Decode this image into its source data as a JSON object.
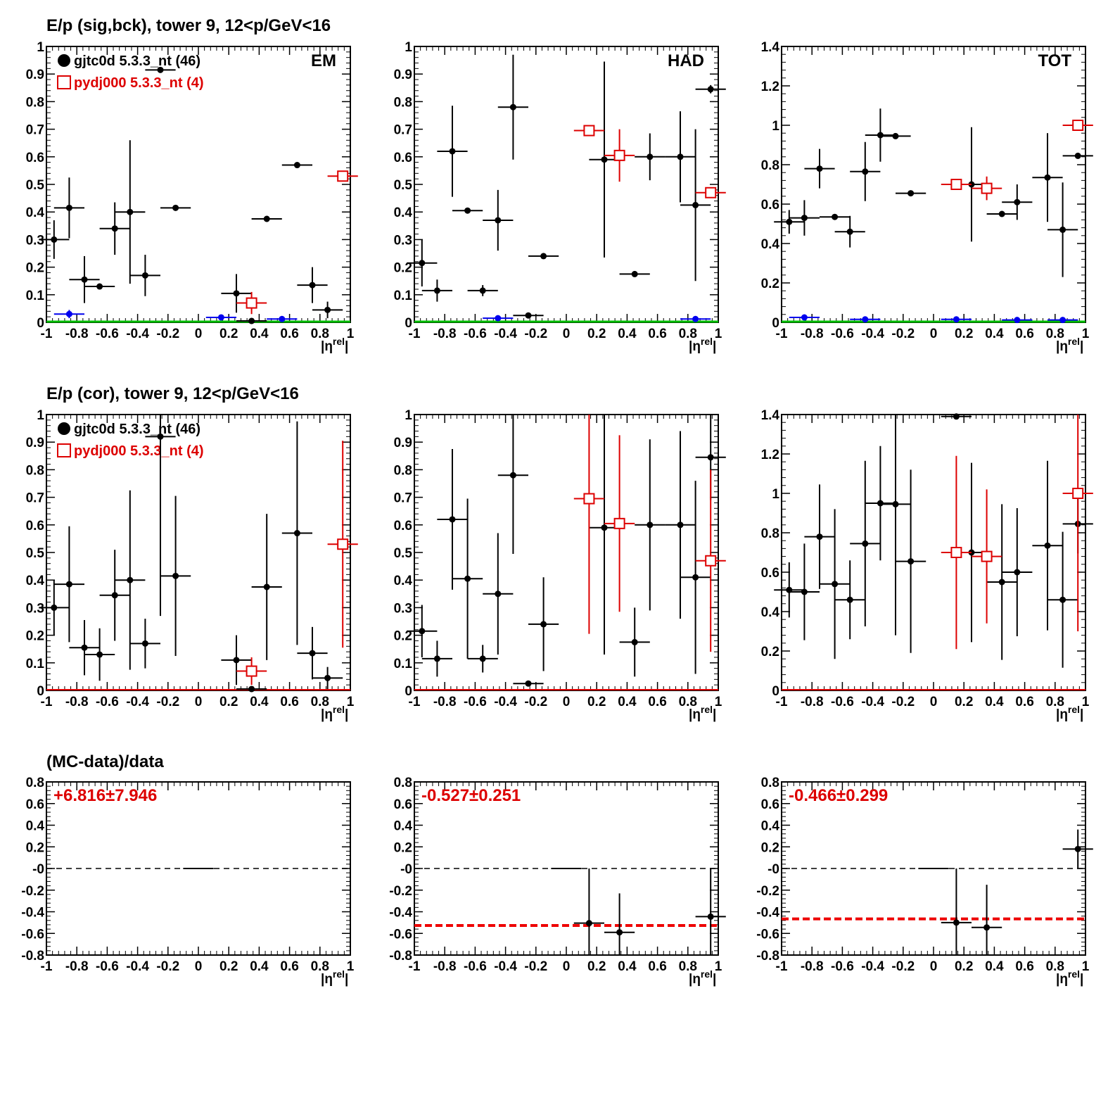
{
  "row_titles": [
    "E/p (sig,bck), tower 9, 12<p/GeV<16",
    "E/p (cor), tower 9, 12<p/GeV<16",
    "(MC-data)/data"
  ],
  "legend": {
    "data_label": "gjtc0d 5.3.3_nt (46)",
    "mc_label": "pydj000 5.3.3_nt (4)"
  },
  "colors": {
    "data": "#000000",
    "mc": "#dd0000",
    "bck": "#0000ee",
    "zero_line_top": "#00bb00",
    "zero_line_mid": "#dd0000",
    "fit_line": "#ee0000"
  },
  "chart_data": [
    {
      "id": "sigbck-em",
      "type": "scatter",
      "tag": "EM",
      "legend": true,
      "xlim": [
        -1,
        1
      ],
      "ylim": [
        0,
        1
      ],
      "xlabel": "|η^rel|",
      "xticks": [
        "-1",
        "-0.8",
        "-0.6",
        "-0.4",
        "-0.2",
        "0",
        "0.2",
        "0.4",
        "0.6",
        "0.8",
        "1"
      ],
      "yticks": [
        "0",
        "0.1",
        "0.2",
        "0.3",
        "0.4",
        "0.5",
        "0.6",
        "0.7",
        "0.8",
        "0.9",
        "1"
      ],
      "zero_line": "green",
      "series": [
        {
          "name": "gjtc0d 5.3.3_nt (46)",
          "role": "data",
          "points": [
            [
              -0.95,
              0.3,
              0.07
            ],
            [
              -0.85,
              0.415,
              0.11
            ],
            [
              -0.75,
              0.155,
              0.085
            ],
            [
              -0.65,
              0.13,
              0.005
            ],
            [
              -0.55,
              0.34,
              0.095
            ],
            [
              -0.45,
              0.4,
              0.26
            ],
            [
              -0.35,
              0.17,
              0.075
            ],
            [
              -0.25,
              0.915,
              0.005
            ],
            [
              -0.15,
              0.415,
              0.005
            ],
            [
              0.25,
              0.105,
              0.07
            ],
            [
              0.35,
              0.005,
              0.005
            ],
            [
              0.45,
              0.375,
              0.005
            ],
            [
              0.65,
              0.57,
              0.005
            ],
            [
              0.75,
              0.135,
              0.065
            ],
            [
              0.85,
              0.045,
              0.03
            ]
          ]
        },
        {
          "name": "pydj000 5.3.3_nt (4)",
          "role": "mc",
          "points": [
            [
              0.35,
              0.07,
              0.04
            ],
            [
              0.95,
              0.53,
              0.005
            ]
          ]
        },
        {
          "name": "",
          "role": "bck",
          "points": [
            [
              -0.85,
              0.03,
              0.015
            ],
            [
              0.15,
              0.018,
              0.005
            ],
            [
              0.55,
              0.012,
              0.005
            ]
          ]
        }
      ]
    },
    {
      "id": "sigbck-had",
      "type": "scatter",
      "tag": "HAD",
      "legend": false,
      "xlim": [
        -1,
        1
      ],
      "ylim": [
        0,
        1
      ],
      "xlabel": "|η^rel|",
      "xticks": [
        "-1",
        "-0.8",
        "-0.6",
        "-0.4",
        "-0.2",
        "0",
        "0.2",
        "0.4",
        "0.6",
        "0.8",
        "1"
      ],
      "yticks": [
        "0",
        "0.1",
        "0.2",
        "0.3",
        "0.4",
        "0.5",
        "0.6",
        "0.7",
        "0.8",
        "0.9",
        "1"
      ],
      "zero_line": "green",
      "series": [
        {
          "name": "gjtc0d 5.3.3_nt (46)",
          "role": "data",
          "points": [
            [
              -0.95,
              0.215,
              0.085
            ],
            [
              -0.85,
              0.115,
              0.04
            ],
            [
              -0.75,
              0.62,
              0.165
            ],
            [
              -0.65,
              0.405,
              0.005
            ],
            [
              -0.55,
              0.115,
              0.02
            ],
            [
              -0.45,
              0.37,
              0.11
            ],
            [
              -0.35,
              0.78,
              0.19
            ],
            [
              -0.25,
              0.025,
              0.005
            ],
            [
              -0.15,
              0.24,
              0.005
            ],
            [
              0.25,
              0.59,
              0.355
            ],
            [
              0.45,
              0.175,
              0.005
            ],
            [
              0.55,
              0.6,
              0.085
            ],
            [
              0.75,
              0.6,
              0.165
            ],
            [
              0.85,
              0.425,
              0.275
            ],
            [
              0.95,
              0.845,
              0.015
            ]
          ]
        },
        {
          "name": "pydj000 5.3.3_nt (4)",
          "role": "mc",
          "points": [
            [
              0.15,
              0.695,
              0.005
            ],
            [
              0.35,
              0.605,
              0.095
            ],
            [
              0.95,
              0.47,
              0.005
            ]
          ]
        },
        {
          "name": "",
          "role": "bck",
          "points": [
            [
              -0.45,
              0.015,
              0.005
            ],
            [
              0.85,
              0.012,
              0.005
            ]
          ]
        }
      ]
    },
    {
      "id": "sigbck-tot",
      "type": "scatter",
      "tag": "TOT",
      "legend": false,
      "xlim": [
        -1,
        1
      ],
      "ylim": [
        0,
        1.4
      ],
      "xlabel": "|η^rel|",
      "xticks": [
        "-1",
        "-0.8",
        "-0.6",
        "-0.4",
        "-0.2",
        "0",
        "0.2",
        "0.4",
        "0.6",
        "0.8",
        "1"
      ],
      "yticks": [
        "0",
        "0.2",
        "0.4",
        "0.6",
        "0.8",
        "1",
        "1.2",
        "1.4"
      ],
      "zero_line": "green",
      "series": [
        {
          "name": "gjtc0d 5.3.3_nt (46)",
          "role": "data",
          "points": [
            [
              -0.95,
              0.51,
              0.06
            ],
            [
              -0.85,
              0.53,
              0.09
            ],
            [
              -0.75,
              0.78,
              0.1
            ],
            [
              -0.65,
              0.535,
              0.005
            ],
            [
              -0.55,
              0.46,
              0.08
            ],
            [
              -0.45,
              0.765,
              0.15
            ],
            [
              -0.35,
              0.95,
              0.135
            ],
            [
              -0.25,
              0.945,
              0.005
            ],
            [
              -0.15,
              0.655,
              0.005
            ],
            [
              0.25,
              0.7,
              0.29
            ],
            [
              0.45,
              0.55,
              0.005
            ],
            [
              0.55,
              0.61,
              0.09
            ],
            [
              0.75,
              0.735,
              0.225
            ],
            [
              0.85,
              0.47,
              0.24
            ],
            [
              0.95,
              0.845,
              0.015
            ]
          ]
        },
        {
          "name": "pydj000 5.3.3_nt (4)",
          "role": "mc",
          "points": [
            [
              0.15,
              0.7,
              0.005
            ],
            [
              0.35,
              0.68,
              0.06
            ],
            [
              0.95,
              1.0,
              0.005
            ]
          ]
        },
        {
          "name": "",
          "role": "bck",
          "points": [
            [
              -0.85,
              0.025,
              0.015
            ],
            [
              -0.45,
              0.015,
              0.005
            ],
            [
              0.15,
              0.015,
              0.005
            ],
            [
              0.55,
              0.012,
              0.005
            ],
            [
              0.85,
              0.012,
              0.005
            ]
          ]
        }
      ]
    },
    {
      "id": "cor-em",
      "type": "scatter",
      "tag": "",
      "legend": true,
      "xlim": [
        -1,
        1
      ],
      "ylim": [
        0,
        1
      ],
      "xlabel": "|η^rel|",
      "xticks": [
        "-1",
        "-0.8",
        "-0.6",
        "-0.4",
        "-0.2",
        "0",
        "0.2",
        "0.4",
        "0.6",
        "0.8",
        "1"
      ],
      "yticks": [
        "0",
        "0.1",
        "0.2",
        "0.3",
        "0.4",
        "0.5",
        "0.6",
        "0.7",
        "0.8",
        "0.9",
        "1"
      ],
      "zero_line": "red",
      "series": [
        {
          "name": "gjtc0d 5.3.3_nt (46)",
          "role": "data",
          "points": [
            [
              -0.95,
              0.3,
              0.1
            ],
            [
              -0.85,
              0.385,
              0.21
            ],
            [
              -0.75,
              0.155,
              0.1
            ],
            [
              -0.65,
              0.13,
              0.095
            ],
            [
              -0.55,
              0.345,
              0.165
            ],
            [
              -0.45,
              0.4,
              0.325
            ],
            [
              -0.35,
              0.17,
              0.09
            ],
            [
              -0.25,
              0.92,
              0.65
            ],
            [
              -0.15,
              0.415,
              0.29
            ],
            [
              0.25,
              0.11,
              0.09
            ],
            [
              0.35,
              0.005,
              0.005
            ],
            [
              0.45,
              0.375,
              0.265
            ],
            [
              0.65,
              0.57,
              0.405
            ],
            [
              0.75,
              0.135,
              0.095
            ],
            [
              0.85,
              0.045,
              0.04
            ]
          ]
        },
        {
          "name": "pydj000 5.3.3_nt (4)",
          "role": "mc",
          "points": [
            [
              0.35,
              0.07,
              0.05
            ],
            [
              0.95,
              0.53,
              0.375
            ]
          ]
        }
      ]
    },
    {
      "id": "cor-had",
      "type": "scatter",
      "tag": "",
      "legend": false,
      "xlim": [
        -1,
        1
      ],
      "ylim": [
        0,
        1
      ],
      "xlabel": "|η^rel|",
      "xticks": [
        "-1",
        "-0.8",
        "-0.6",
        "-0.4",
        "-0.2",
        "0",
        "0.2",
        "0.4",
        "0.6",
        "0.8",
        "1"
      ],
      "yticks": [
        "0",
        "0.1",
        "0.2",
        "0.3",
        "0.4",
        "0.5",
        "0.6",
        "0.7",
        "0.8",
        "0.9",
        "1"
      ],
      "zero_line": "red",
      "series": [
        {
          "name": "gjtc0d 5.3.3_nt (46)",
          "role": "data",
          "points": [
            [
              -0.95,
              0.215,
              0.095
            ],
            [
              -0.85,
              0.115,
              0.065
            ],
            [
              -0.75,
              0.62,
              0.255
            ],
            [
              -0.65,
              0.405,
              0.29
            ],
            [
              -0.55,
              0.115,
              0.05
            ],
            [
              -0.45,
              0.35,
              0.22
            ],
            [
              -0.35,
              0.78,
              0.285
            ],
            [
              -0.25,
              0.025,
              0.01
            ],
            [
              -0.15,
              0.24,
              0.17
            ],
            [
              0.25,
              0.59,
              0.46
            ],
            [
              0.45,
              0.175,
              0.125
            ],
            [
              0.55,
              0.6,
              0.31
            ],
            [
              0.75,
              0.6,
              0.34
            ],
            [
              0.85,
              0.41,
              0.35
            ],
            [
              0.95,
              0.845,
              0.155
            ]
          ]
        },
        {
          "name": "pydj000 5.3.3_nt (4)",
          "role": "mc",
          "points": [
            [
              0.15,
              0.695,
              0.49
            ],
            [
              0.35,
              0.605,
              0.32
            ],
            [
              0.95,
              0.47,
              0.33
            ]
          ]
        }
      ]
    },
    {
      "id": "cor-tot",
      "type": "scatter",
      "tag": "",
      "legend": false,
      "xlim": [
        -1,
        1
      ],
      "ylim": [
        0,
        1.4
      ],
      "xlabel": "|η^rel|",
      "xticks": [
        "-1",
        "-0.8",
        "-0.6",
        "-0.4",
        "-0.2",
        "0",
        "0.2",
        "0.4",
        "0.6",
        "0.8",
        "1"
      ],
      "yticks": [
        "0",
        "0.2",
        "0.4",
        "0.6",
        "0.8",
        "1",
        "1.2",
        "1.4"
      ],
      "zero_line": "red",
      "series": [
        {
          "name": "gjtc0d 5.3.3_nt (46)",
          "role": "data",
          "points": [
            [
              -0.95,
              0.51,
              0.14
            ],
            [
              -0.85,
              0.5,
              0.245
            ],
            [
              -0.75,
              0.78,
              0.265
            ],
            [
              -0.65,
              0.54,
              0.38
            ],
            [
              -0.55,
              0.46,
              0.2
            ],
            [
              -0.45,
              0.745,
              0.42
            ],
            [
              -0.35,
              0.95,
              0.29
            ],
            [
              -0.25,
              0.945,
              0.665
            ],
            [
              -0.15,
              0.655,
              0.465
            ],
            [
              0.15,
              1.39,
              0.01
            ],
            [
              0.25,
              0.7,
              0.455
            ],
            [
              0.45,
              0.55,
              0.395
            ],
            [
              0.55,
              0.6,
              0.325
            ],
            [
              0.75,
              0.735,
              0.43
            ],
            [
              0.85,
              0.46,
              0.345
            ],
            [
              0.95,
              0.845,
              0.15
            ]
          ]
        },
        {
          "name": "pydj000 5.3.3_nt (4)",
          "role": "mc",
          "points": [
            [
              0.15,
              0.7,
              0.49
            ],
            [
              0.35,
              0.68,
              0.34
            ],
            [
              0.95,
              1.0,
              0.7
            ]
          ]
        }
      ]
    },
    {
      "id": "ratio-em",
      "type": "scatter",
      "tag": "",
      "legend": false,
      "xlim": [
        -1,
        1
      ],
      "ylim": [
        -0.8,
        0.8
      ],
      "xlabel": "|η^rel|",
      "xticks": [
        "-1",
        "-0.8",
        "-0.6",
        "-0.4",
        "-0.2",
        "0",
        "0.2",
        "0.4",
        "0.6",
        "0.8",
        "1"
      ],
      "yticks": [
        "-0.8",
        "-0.6",
        "-0.4",
        "-0.2",
        "-0",
        "0.2",
        "0.4",
        "0.6",
        "0.8"
      ],
      "zero_line": "dashed",
      "fit_text": "+6.816±7.946",
      "fit_value": 6.816,
      "series": [
        {
          "name": "",
          "role": "ratio",
          "points": [
            [
              0.0,
              0.0,
              0.0
            ]
          ]
        }
      ]
    },
    {
      "id": "ratio-had",
      "type": "scatter",
      "tag": "",
      "legend": false,
      "xlim": [
        -1,
        1
      ],
      "ylim": [
        -0.8,
        0.8
      ],
      "xlabel": "|η^rel|",
      "xticks": [
        "-1",
        "-0.8",
        "-0.6",
        "-0.4",
        "-0.2",
        "0",
        "0.2",
        "0.4",
        "0.6",
        "0.8",
        "1"
      ],
      "yticks": [
        "-0.8",
        "-0.6",
        "-0.4",
        "-0.2",
        "-0",
        "0.2",
        "0.4",
        "0.6",
        "0.8"
      ],
      "zero_line": "dashed",
      "fit_text": "-0.527±0.251",
      "fit_value": -0.527,
      "series": [
        {
          "name": "",
          "role": "ratio",
          "points": [
            [
              0.0,
              0.0,
              0.0
            ],
            [
              0.15,
              -0.505,
              0.505
            ],
            [
              0.35,
              -0.59,
              0.36
            ],
            [
              0.95,
              -0.445,
              0.445
            ]
          ]
        }
      ]
    },
    {
      "id": "ratio-tot",
      "type": "scatter",
      "tag": "",
      "legend": false,
      "xlim": [
        -1,
        1
      ],
      "ylim": [
        -0.8,
        0.8
      ],
      "xlabel": "|η^rel|",
      "xticks": [
        "-1",
        "-0.8",
        "-0.6",
        "-0.4",
        "-0.2",
        "0",
        "0.2",
        "0.4",
        "0.6",
        "0.8",
        "1"
      ],
      "yticks": [
        "-0.8",
        "-0.6",
        "-0.4",
        "-0.2",
        "-0",
        "0.2",
        "0.4",
        "0.6",
        "0.8"
      ],
      "zero_line": "dashed",
      "fit_text": "-0.466±0.299",
      "fit_value": -0.466,
      "series": [
        {
          "name": "",
          "role": "ratio",
          "points": [
            [
              0.0,
              0.0,
              0.0
            ],
            [
              0.15,
              -0.5,
              0.5
            ],
            [
              0.35,
              -0.545,
              0.395
            ],
            [
              0.95,
              0.18,
              0.18
            ]
          ]
        }
      ]
    }
  ]
}
